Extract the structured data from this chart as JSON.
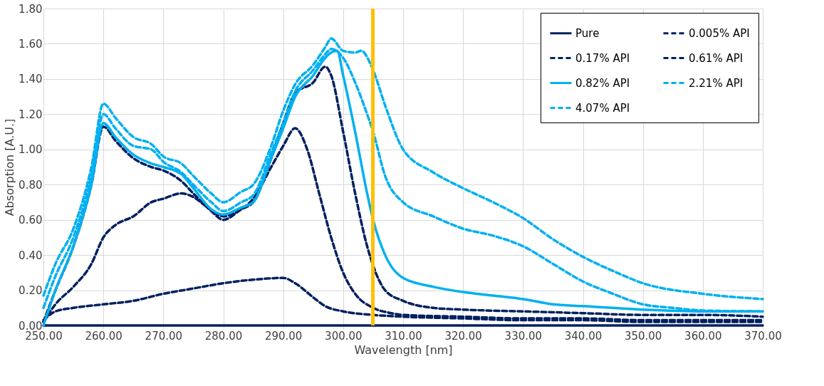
{
  "chart_data": {
    "type": "line",
    "xlabel": "Wavelength [nm]",
    "ylabel": "Absorption [A.U.]",
    "xlim": [
      250,
      370
    ],
    "ylim": [
      0,
      1.8
    ],
    "xticks": [
      {
        "value": 250,
        "label": "250.00"
      },
      {
        "value": 260,
        "label": "260.00"
      },
      {
        "value": 270,
        "label": "270.00"
      },
      {
        "value": 280,
        "label": "280.00"
      },
      {
        "value": 290,
        "label": "290.00"
      },
      {
        "value": 300,
        "label": "300.00"
      },
      {
        "value": 310,
        "label": "310.00"
      },
      {
        "value": 320,
        "label": "320.00"
      },
      {
        "value": 330,
        "label": "330.00"
      },
      {
        "value": 340,
        "label": "340.00"
      },
      {
        "value": 350,
        "label": "350.00"
      },
      {
        "value": 360,
        "label": "360.00"
      },
      {
        "value": 370,
        "label": "370.00"
      }
    ],
    "yticks": [
      {
        "value": 0,
        "label": "0.00"
      },
      {
        "value": 0.2,
        "label": "0.20"
      },
      {
        "value": 0.4,
        "label": "0.40"
      },
      {
        "value": 0.6,
        "label": "0.60"
      },
      {
        "value": 0.8,
        "label": "0.80"
      },
      {
        "value": 1.0,
        "label": "1.00"
      },
      {
        "value": 1.2,
        "label": "1.20"
      },
      {
        "value": 1.4,
        "label": "1.40"
      },
      {
        "value": 1.6,
        "label": "1.60"
      },
      {
        "value": 1.8,
        "label": "1.80"
      }
    ],
    "grid": true,
    "legend": "top right",
    "marker": "none",
    "ref_lines": [
      {
        "axis": "x",
        "value": 305,
        "color": "#ffc000"
      }
    ],
    "series": [
      {
        "name": "Pure",
        "color": "#002060",
        "line_style": "solid",
        "x": [
          250,
          370
        ],
        "values": [
          0,
          0
        ]
      },
      {
        "name": "0.005% API",
        "color": "#002060",
        "line_style": "dashed",
        "x": [
          250,
          252,
          255,
          260,
          265,
          270,
          275,
          280,
          285,
          290,
          292,
          295,
          297,
          300,
          305,
          310,
          320,
          330,
          340,
          350,
          360,
          370
        ],
        "values": [
          0.03,
          0.08,
          0.1,
          0.12,
          0.14,
          0.18,
          0.21,
          0.24,
          0.26,
          0.27,
          0.24,
          0.16,
          0.11,
          0.08,
          0.06,
          0.05,
          0.04,
          0.03,
          0.03,
          0.02,
          0.02,
          0.02
        ]
      },
      {
        "name": "0.17% API",
        "color": "#002060",
        "line_style": "dashed",
        "x": [
          250,
          252,
          255,
          258,
          260,
          262,
          265,
          268,
          270,
          273,
          275,
          277,
          280,
          283,
          285,
          288,
          290,
          292,
          294,
          296,
          298,
          300,
          302,
          305,
          308,
          310,
          320,
          330,
          340,
          350,
          360,
          370
        ],
        "values": [
          0.02,
          0.12,
          0.22,
          0.35,
          0.5,
          0.57,
          0.62,
          0.7,
          0.72,
          0.75,
          0.73,
          0.68,
          0.62,
          0.66,
          0.72,
          0.9,
          1.02,
          1.12,
          1.0,
          0.75,
          0.5,
          0.3,
          0.18,
          0.1,
          0.07,
          0.06,
          0.05,
          0.04,
          0.04,
          0.03,
          0.03,
          0.03
        ]
      },
      {
        "name": "0.61% API",
        "color": "#002060",
        "line_style": "dashed",
        "x": [
          250,
          252,
          255,
          258,
          260,
          262,
          265,
          268,
          270,
          273,
          275,
          278,
          280,
          283,
          285,
          288,
          290,
          292,
          295,
          297,
          298,
          300,
          302,
          304,
          305,
          307,
          310,
          315,
          320,
          330,
          340,
          350,
          360,
          370
        ],
        "values": [
          0.02,
          0.2,
          0.45,
          0.8,
          1.13,
          1.05,
          0.95,
          0.9,
          0.88,
          0.82,
          0.75,
          0.65,
          0.6,
          0.66,
          0.7,
          0.95,
          1.15,
          1.32,
          1.38,
          1.47,
          1.42,
          1.1,
          0.75,
          0.45,
          0.34,
          0.2,
          0.14,
          0.1,
          0.09,
          0.08,
          0.07,
          0.06,
          0.06,
          0.05
        ]
      },
      {
        "name": "0.82% API",
        "color": "#00b0f0",
        "line_style": "solid",
        "x": [
          250,
          252,
          255,
          258,
          260,
          262,
          265,
          268,
          270,
          273,
          275,
          278,
          280,
          283,
          285,
          288,
          290,
          292,
          295,
          297,
          298,
          299,
          300,
          302,
          304,
          305,
          307,
          310,
          315,
          320,
          325,
          330,
          335,
          340,
          350,
          360,
          370
        ],
        "values": [
          0.0,
          0.2,
          0.45,
          0.8,
          1.15,
          1.07,
          0.97,
          0.92,
          0.9,
          0.86,
          0.78,
          0.66,
          0.63,
          0.67,
          0.7,
          0.95,
          1.12,
          1.3,
          1.42,
          1.52,
          1.55,
          1.56,
          1.42,
          1.1,
          0.75,
          0.6,
          0.4,
          0.27,
          0.22,
          0.19,
          0.17,
          0.15,
          0.12,
          0.11,
          0.09,
          0.08,
          0.08
        ]
      },
      {
        "name": "2.21% API",
        "color": "#00b0f0",
        "line_style": "dashed",
        "x": [
          250,
          252,
          255,
          258,
          260,
          262,
          265,
          268,
          270,
          273,
          275,
          278,
          280,
          283,
          285,
          288,
          290,
          292,
          295,
          297,
          298,
          300,
          302,
          304,
          305,
          307,
          310,
          315,
          320,
          325,
          330,
          335,
          340,
          345,
          350,
          355,
          360,
          370
        ],
        "values": [
          0.1,
          0.28,
          0.5,
          0.85,
          1.2,
          1.12,
          1.02,
          1.0,
          0.93,
          0.87,
          0.8,
          0.7,
          0.65,
          0.7,
          0.74,
          0.98,
          1.15,
          1.33,
          1.45,
          1.54,
          1.57,
          1.52,
          1.38,
          1.2,
          1.1,
          0.85,
          0.7,
          0.62,
          0.55,
          0.51,
          0.45,
          0.35,
          0.25,
          0.18,
          0.12,
          0.1,
          0.085,
          0.08
        ]
      },
      {
        "name": "4.07% API",
        "color": "#00b0f0",
        "line_style": "dashed",
        "x": [
          250,
          252,
          255,
          258,
          260,
          262,
          265,
          268,
          270,
          273,
          275,
          278,
          280,
          283,
          285,
          288,
          290,
          292,
          295,
          297,
          298,
          300,
          302,
          303,
          305,
          307,
          310,
          315,
          320,
          325,
          330,
          335,
          340,
          345,
          350,
          360,
          370
        ],
        "values": [
          0.17,
          0.35,
          0.55,
          0.9,
          1.26,
          1.18,
          1.07,
          1.03,
          0.96,
          0.92,
          0.85,
          0.75,
          0.7,
          0.76,
          0.8,
          1.02,
          1.22,
          1.37,
          1.48,
          1.58,
          1.63,
          1.56,
          1.55,
          1.56,
          1.45,
          1.25,
          1.0,
          0.87,
          0.78,
          0.7,
          0.61,
          0.49,
          0.39,
          0.31,
          0.24,
          0.18,
          0.15
        ]
      }
    ]
  }
}
